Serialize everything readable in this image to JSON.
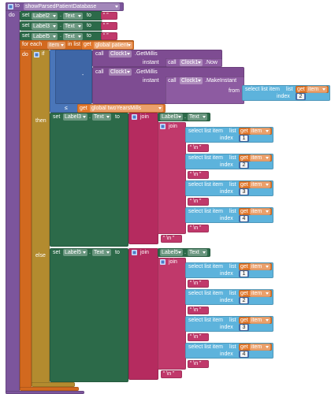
{
  "procedure": {
    "keyword": "to",
    "name": "showParsedPatientDatabase",
    "do": "do"
  },
  "clears": [
    {
      "set": "set",
      "component": "Label2",
      "dot": ".",
      "property": "Text",
      "to": "to",
      "value": "“ ”"
    },
    {
      "set": "set",
      "component": "Label3",
      "dot": ".",
      "property": "Text",
      "to": "to",
      "value": "“ ”"
    },
    {
      "set": "set",
      "component": "Label5",
      "dot": ".",
      "property": "Text",
      "to": "to",
      "value": "“ ”"
    }
  ],
  "for_each": {
    "keyword": "for each",
    "variable": "item",
    "in_list": "in list",
    "get": "get",
    "list": "global patient",
    "do": "do"
  },
  "if_block": {
    "if": "if",
    "then": "then",
    "else": "else"
  },
  "condition": {
    "minus": "-",
    "compare": "≤",
    "get": "get",
    "variable": "global twoYearsMills"
  },
  "get_millis": [
    {
      "call": "call",
      "component": "Clock1",
      "method": ".GetMillis",
      "instant": "instant"
    },
    {
      "call": "call",
      "component": "Clock1",
      "method": ".GetMillis",
      "instant": "instant"
    }
  ],
  "now": {
    "call": "call",
    "component": "Clock1",
    "method": ".Now"
  },
  "make_instant": {
    "call": "call",
    "component": "Clock1",
    "method": ".MakeInstant",
    "from": "from"
  },
  "from_item": {
    "select": "select list item",
    "list": "list",
    "get": "get",
    "variable": "item",
    "index": "index",
    "number": 2
  },
  "branches": [
    {
      "set": "set",
      "component": "Label3",
      "dot": ".",
      "property": "Text",
      "to": "to",
      "join": "join",
      "join_component": "Label3",
      "join_dot": ".",
      "join_property": "Text",
      "inner_join": "join",
      "items": [
        {
          "select": "select list item",
          "list": "list",
          "get": "get",
          "variable": "item",
          "index": "index",
          "number": 1,
          "newline": "“ \\n ”"
        },
        {
          "select": "select list item",
          "list": "list",
          "get": "get",
          "variable": "item",
          "index": "index",
          "number": 2,
          "newline": "“ \\n ”"
        },
        {
          "select": "select list item",
          "list": "list",
          "get": "get",
          "variable": "item",
          "index": "index",
          "number": 3,
          "newline": "“ \\n ”"
        },
        {
          "select": "select list item",
          "list": "list",
          "get": "get",
          "variable": "item",
          "index": "index",
          "number": 4,
          "newline": "“ \\n ”"
        }
      ],
      "tail": "“ \\n ”"
    },
    {
      "set": "set",
      "component": "Label5",
      "dot": ".",
      "property": "Text",
      "to": "to",
      "join": "join",
      "join_component": "Label5",
      "join_dot": ".",
      "join_property": "Text",
      "inner_join": "join",
      "items": [
        {
          "select": "select list item",
          "list": "list",
          "get": "get",
          "variable": "item",
          "index": "index",
          "number": 1,
          "newline": "“ \\n ”"
        },
        {
          "select": "select list item",
          "list": "list",
          "get": "get",
          "variable": "item",
          "index": "index",
          "number": 2,
          "newline": "“ \\n ”"
        },
        {
          "select": "select list item",
          "list": "list",
          "get": "get",
          "variable": "item",
          "index": "index",
          "number": 3,
          "newline": "“ \\n ”"
        },
        {
          "select": "select list item",
          "list": "list",
          "get": "get",
          "variable": "item",
          "index": "index",
          "number": 4,
          "newline": "“ \\n ”"
        }
      ],
      "tail": "“ \\n ”"
    }
  ]
}
